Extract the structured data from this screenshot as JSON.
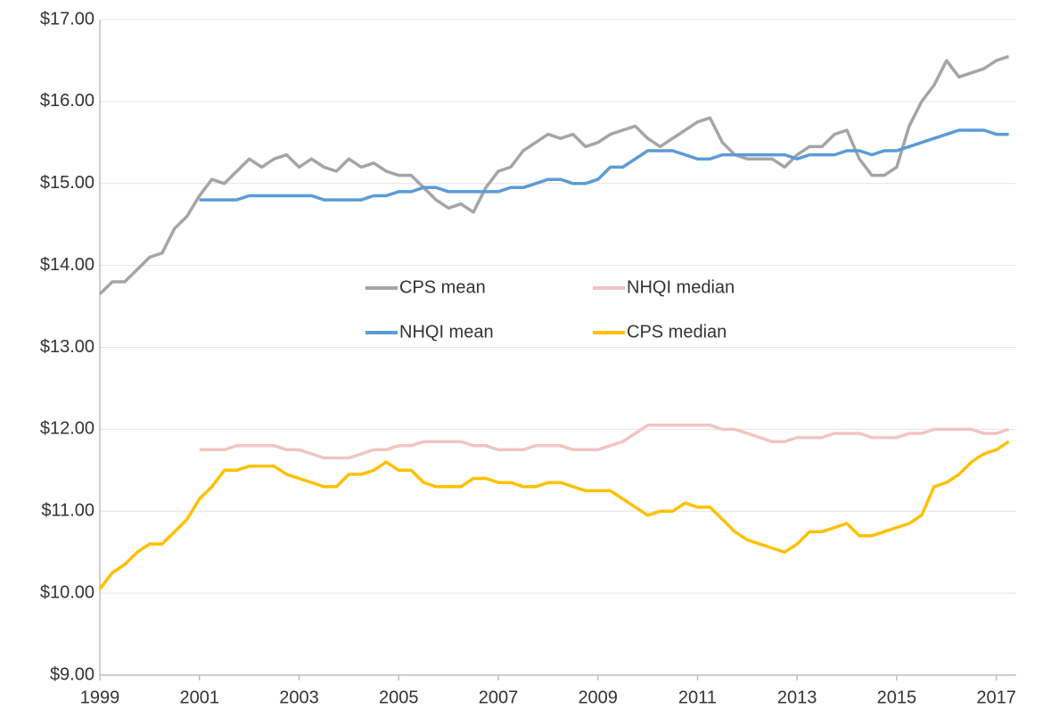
{
  "chart_data": {
    "type": "line",
    "x": [
      1999,
      1999.25,
      1999.5,
      1999.75,
      2000,
      2000.25,
      2000.5,
      2000.75,
      2001,
      2001.25,
      2001.5,
      2001.75,
      2002,
      2002.25,
      2002.5,
      2002.75,
      2003,
      2003.25,
      2003.5,
      2003.75,
      2004,
      2004.25,
      2004.5,
      2004.75,
      2005,
      2005.25,
      2005.5,
      2005.75,
      2006,
      2006.25,
      2006.5,
      2006.75,
      2007,
      2007.25,
      2007.5,
      2007.75,
      2008,
      2008.25,
      2008.5,
      2008.75,
      2009,
      2009.25,
      2009.5,
      2009.75,
      2010,
      2010.25,
      2010.5,
      2010.75,
      2011,
      2011.25,
      2011.5,
      2011.75,
      2012,
      2012.25,
      2012.5,
      2012.75,
      2013,
      2013.25,
      2013.5,
      2013.75,
      2014,
      2014.25,
      2014.5,
      2014.75,
      2015,
      2015.25,
      2015.5,
      2015.75,
      2016,
      2016.25,
      2016.5,
      2016.75,
      2017,
      2017.25
    ],
    "series": [
      {
        "name": "CPS mean",
        "color": "#a5a5a5",
        "values": [
          13.65,
          13.8,
          13.8,
          13.95,
          14.1,
          14.15,
          14.45,
          14.6,
          14.85,
          15.05,
          15.0,
          15.15,
          15.3,
          15.2,
          15.3,
          15.35,
          15.2,
          15.3,
          15.2,
          15.15,
          15.3,
          15.2,
          15.25,
          15.15,
          15.1,
          15.1,
          14.95,
          14.8,
          14.7,
          14.75,
          14.65,
          14.95,
          15.15,
          15.2,
          15.4,
          15.5,
          15.6,
          15.55,
          15.6,
          15.45,
          15.5,
          15.6,
          15.65,
          15.7,
          15.55,
          15.45,
          15.55,
          15.65,
          15.75,
          15.8,
          15.5,
          15.35,
          15.3,
          15.3,
          15.3,
          15.2,
          15.35,
          15.45,
          15.45,
          15.6,
          15.65,
          15.3,
          15.1,
          15.1,
          15.2,
          15.7,
          16.0,
          16.2,
          16.5,
          16.3,
          16.35,
          16.4,
          16.5,
          16.55
        ]
      },
      {
        "name": "NHQI median",
        "color": "#f2c4c4",
        "values": [
          null,
          null,
          null,
          null,
          null,
          null,
          null,
          null,
          11.75,
          11.75,
          11.75,
          11.8,
          11.8,
          11.8,
          11.8,
          11.75,
          11.75,
          11.7,
          11.65,
          11.65,
          11.65,
          11.7,
          11.75,
          11.75,
          11.8,
          11.8,
          11.85,
          11.85,
          11.85,
          11.85,
          11.8,
          11.8,
          11.75,
          11.75,
          11.75,
          11.8,
          11.8,
          11.8,
          11.75,
          11.75,
          11.75,
          11.8,
          11.85,
          11.95,
          12.05,
          12.05,
          12.05,
          12.05,
          12.05,
          12.05,
          12.0,
          12.0,
          11.95,
          11.9,
          11.85,
          11.85,
          11.9,
          11.9,
          11.9,
          11.95,
          11.95,
          11.95,
          11.9,
          11.9,
          11.9,
          11.95,
          11.95,
          12.0,
          12.0,
          12.0,
          12.0,
          11.95,
          11.95,
          12.0
        ]
      },
      {
        "name": "NHQI mean",
        "color": "#5b9bd5",
        "values": [
          null,
          null,
          null,
          null,
          null,
          null,
          null,
          null,
          14.8,
          14.8,
          14.8,
          14.8,
          14.85,
          14.85,
          14.85,
          14.85,
          14.85,
          14.85,
          14.8,
          14.8,
          14.8,
          14.8,
          14.85,
          14.85,
          14.9,
          14.9,
          14.95,
          14.95,
          14.9,
          14.9,
          14.9,
          14.9,
          14.9,
          14.95,
          14.95,
          15.0,
          15.05,
          15.05,
          15.0,
          15.0,
          15.05,
          15.2,
          15.2,
          15.3,
          15.4,
          15.4,
          15.4,
          15.35,
          15.3,
          15.3,
          15.35,
          15.35,
          15.35,
          15.35,
          15.35,
          15.35,
          15.3,
          15.35,
          15.35,
          15.35,
          15.4,
          15.4,
          15.35,
          15.4,
          15.4,
          15.45,
          15.5,
          15.55,
          15.6,
          15.65,
          15.65,
          15.65,
          15.6,
          15.6
        ]
      },
      {
        "name": "CPS median",
        "color": "#ffc000",
        "values": [
          10.05,
          10.25,
          10.35,
          10.5,
          10.6,
          10.6,
          10.75,
          10.9,
          11.15,
          11.3,
          11.5,
          11.5,
          11.55,
          11.55,
          11.55,
          11.45,
          11.4,
          11.35,
          11.3,
          11.3,
          11.45,
          11.45,
          11.5,
          11.6,
          11.5,
          11.5,
          11.35,
          11.3,
          11.3,
          11.3,
          11.4,
          11.4,
          11.35,
          11.35,
          11.3,
          11.3,
          11.35,
          11.35,
          11.3,
          11.25,
          11.25,
          11.25,
          11.15,
          11.05,
          10.95,
          11.0,
          11.0,
          11.1,
          11.05,
          11.05,
          10.9,
          10.75,
          10.65,
          10.6,
          10.55,
          10.5,
          10.6,
          10.75,
          10.75,
          10.8,
          10.85,
          10.7,
          10.7,
          10.75,
          10.8,
          10.85,
          10.95,
          11.3,
          11.35,
          11.45,
          11.6,
          11.7,
          11.75,
          11.85
        ]
      }
    ],
    "xlim": [
      1999,
      2017.4
    ],
    "xticks": [
      1999,
      2001,
      2003,
      2005,
      2007,
      2009,
      2011,
      2013,
      2015,
      2017
    ],
    "ylim": [
      9,
      17
    ],
    "yticks": [
      {
        "value": 9,
        "label": "$9.00"
      },
      {
        "value": 10,
        "label": "$10.00"
      },
      {
        "value": 11,
        "label": "$11.00"
      },
      {
        "value": 12,
        "label": "$12.00"
      },
      {
        "value": 13,
        "label": "$13.00"
      },
      {
        "value": 14,
        "label": "$14.00"
      },
      {
        "value": 15,
        "label": "$15.00"
      },
      {
        "value": 16,
        "label": "$16.00"
      },
      {
        "value": 17,
        "label": "$17.00"
      }
    ],
    "grid": true
  }
}
